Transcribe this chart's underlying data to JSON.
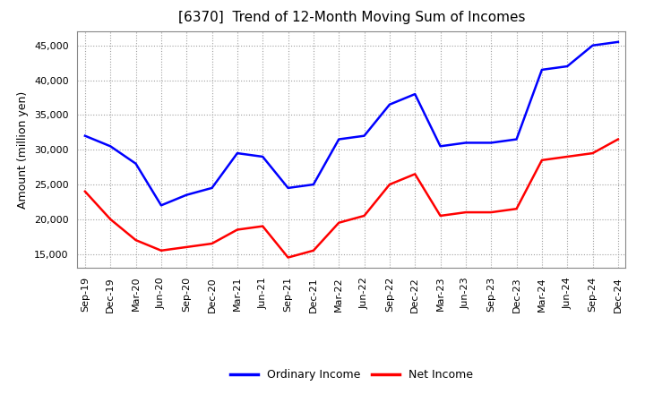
{
  "title": "[6370]  Trend of 12-Month Moving Sum of Incomes",
  "ylabel": "Amount (million yen)",
  "ylim": [
    13000,
    47000
  ],
  "yticks": [
    15000,
    20000,
    25000,
    30000,
    35000,
    40000,
    45000
  ],
  "x_labels": [
    "Sep-19",
    "Dec-19",
    "Mar-20",
    "Jun-20",
    "Sep-20",
    "Dec-20",
    "Mar-21",
    "Jun-21",
    "Sep-21",
    "Dec-21",
    "Mar-22",
    "Jun-22",
    "Sep-22",
    "Dec-22",
    "Mar-23",
    "Jun-23",
    "Sep-23",
    "Dec-23",
    "Mar-24",
    "Jun-24",
    "Sep-24",
    "Dec-24"
  ],
  "ordinary_income": [
    32000,
    30500,
    28000,
    22000,
    23500,
    24500,
    29500,
    29000,
    24500,
    25000,
    31500,
    32000,
    36500,
    38000,
    30500,
    31000,
    31000,
    31500,
    41500,
    42000,
    45000,
    45500
  ],
  "net_income": [
    24000,
    20000,
    17000,
    15500,
    16000,
    16500,
    18500,
    19000,
    14500,
    15500,
    19500,
    20500,
    25000,
    26500,
    20500,
    21000,
    21000,
    21500,
    28500,
    29000,
    29500,
    31500
  ],
  "ordinary_color": "#0000ff",
  "net_color": "#ff0000",
  "grid_color": "#a0a0a0",
  "background_color": "#ffffff",
  "title_fontsize": 11,
  "axis_label_fontsize": 9,
  "tick_fontsize": 8,
  "legend_labels": [
    "Ordinary Income",
    "Net Income"
  ],
  "legend_fontsize": 9,
  "line_width": 1.8
}
